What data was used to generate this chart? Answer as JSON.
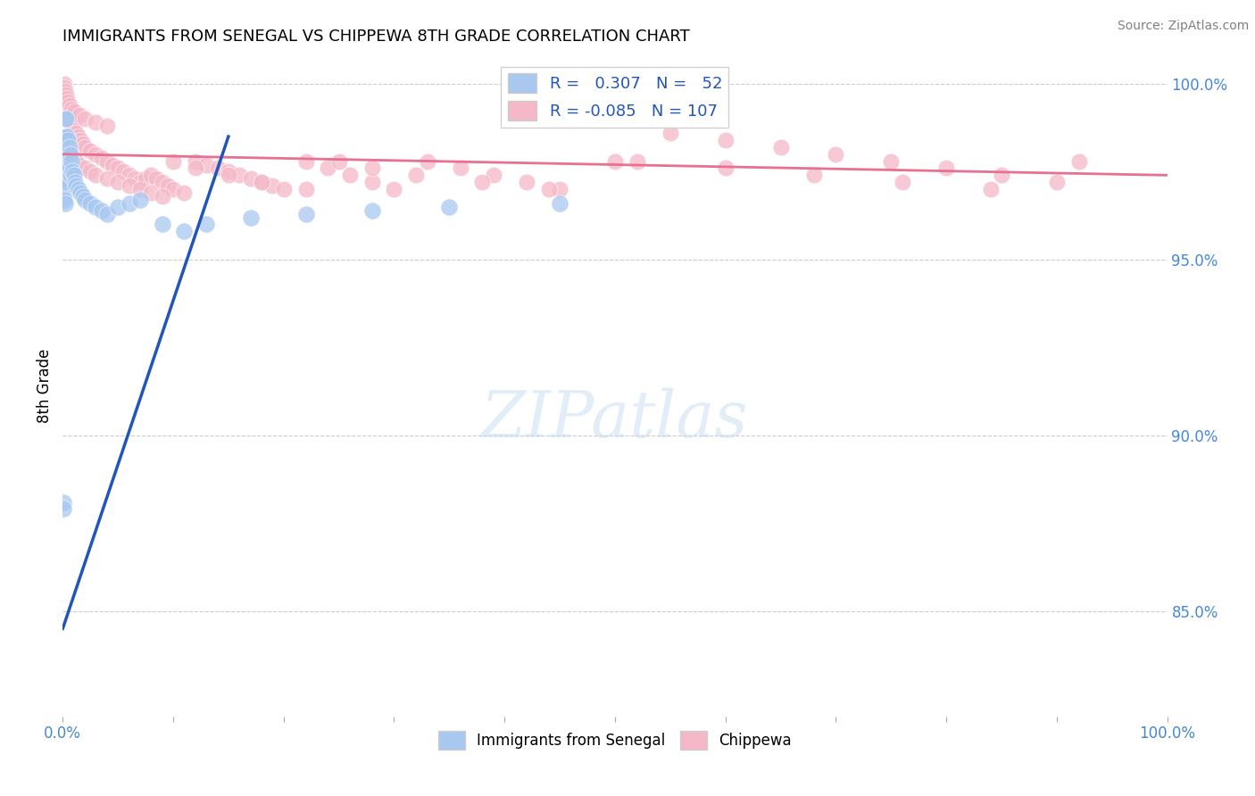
{
  "title": "IMMIGRANTS FROM SENEGAL VS CHIPPEWA 8TH GRADE CORRELATION CHART",
  "source": "Source: ZipAtlas.com",
  "ylabel": "8th Grade",
  "legend_blue_R": "0.307",
  "legend_blue_N": "52",
  "legend_pink_R": "-0.085",
  "legend_pink_N": "107",
  "blue_color": "#A8C8F0",
  "pink_color": "#F5B8C8",
  "blue_line_color": "#2255BB",
  "pink_line_color": "#E87090",
  "background_color": "#FFFFFF",
  "grid_color": "#CCCCCC",
  "xlim": [
    0.0,
    1.0
  ],
  "ylim": [
    0.82,
    1.008
  ],
  "ytick_right_positions": [
    0.85,
    0.9,
    0.95,
    1.0
  ],
  "ytick_right_labels": [
    "85.0%",
    "90.0%",
    "95.0%",
    "100.0%"
  ],
  "blue_scatter_x": [
    0.0008,
    0.0009,
    0.001,
    0.001,
    0.0012,
    0.0013,
    0.0015,
    0.0015,
    0.0016,
    0.0018,
    0.002,
    0.002,
    0.002,
    0.0022,
    0.0025,
    0.003,
    0.003,
    0.003,
    0.003,
    0.004,
    0.004,
    0.004,
    0.005,
    0.005,
    0.006,
    0.006,
    0.007,
    0.007,
    0.008,
    0.009,
    0.01,
    0.011,
    0.012,
    0.014,
    0.016,
    0.018,
    0.02,
    0.025,
    0.03,
    0.035,
    0.04,
    0.05,
    0.06,
    0.07,
    0.09,
    0.11,
    0.13,
    0.17,
    0.22,
    0.28,
    0.35,
    0.45
  ],
  "blue_scatter_y": [
    0.881,
    0.879,
    0.984,
    0.978,
    0.975,
    0.971,
    0.97,
    0.968,
    0.967,
    0.966,
    0.99,
    0.985,
    0.98,
    0.976,
    0.972,
    0.99,
    0.985,
    0.98,
    0.975,
    0.985,
    0.98,
    0.975,
    0.984,
    0.978,
    0.982,
    0.976,
    0.98,
    0.974,
    0.978,
    0.975,
    0.974,
    0.972,
    0.971,
    0.97,
    0.969,
    0.968,
    0.967,
    0.966,
    0.965,
    0.964,
    0.963,
    0.965,
    0.966,
    0.967,
    0.96,
    0.958,
    0.96,
    0.962,
    0.963,
    0.964,
    0.965,
    0.966
  ],
  "pink_scatter_x": [
    0.001,
    0.002,
    0.003,
    0.004,
    0.005,
    0.006,
    0.007,
    0.008,
    0.009,
    0.01,
    0.012,
    0.014,
    0.016,
    0.018,
    0.02,
    0.025,
    0.03,
    0.035,
    0.04,
    0.045,
    0.05,
    0.055,
    0.06,
    0.065,
    0.07,
    0.075,
    0.08,
    0.085,
    0.09,
    0.095,
    0.1,
    0.11,
    0.12,
    0.13,
    0.14,
    0.15,
    0.16,
    0.17,
    0.18,
    0.19,
    0.2,
    0.22,
    0.24,
    0.26,
    0.28,
    0.3,
    0.33,
    0.36,
    0.39,
    0.42,
    0.45,
    0.5,
    0.55,
    0.6,
    0.65,
    0.7,
    0.75,
    0.8,
    0.85,
    0.9,
    0.002,
    0.003,
    0.004,
    0.005,
    0.006,
    0.008,
    0.01,
    0.012,
    0.015,
    0.02,
    0.025,
    0.03,
    0.04,
    0.05,
    0.06,
    0.07,
    0.08,
    0.09,
    0.1,
    0.12,
    0.15,
    0.18,
    0.22,
    0.25,
    0.28,
    0.32,
    0.38,
    0.44,
    0.52,
    0.6,
    0.68,
    0.76,
    0.84,
    0.92,
    0.001,
    0.001,
    0.002,
    0.003,
    0.004,
    0.005,
    0.006,
    0.008,
    0.01,
    0.015,
    0.02,
    0.03,
    0.04
  ],
  "pink_scatter_y": [
    0.998,
    0.996,
    0.994,
    0.993,
    0.992,
    0.991,
    0.99,
    0.989,
    0.988,
    0.987,
    0.986,
    0.985,
    0.984,
    0.983,
    0.982,
    0.981,
    0.98,
    0.979,
    0.978,
    0.977,
    0.976,
    0.975,
    0.974,
    0.973,
    0.972,
    0.973,
    0.974,
    0.973,
    0.972,
    0.971,
    0.97,
    0.969,
    0.978,
    0.977,
    0.976,
    0.975,
    0.974,
    0.973,
    0.972,
    0.971,
    0.97,
    0.978,
    0.976,
    0.974,
    0.972,
    0.97,
    0.978,
    0.976,
    0.974,
    0.972,
    0.97,
    0.978,
    0.986,
    0.984,
    0.982,
    0.98,
    0.978,
    0.976,
    0.974,
    0.972,
    0.985,
    0.984,
    0.983,
    0.982,
    0.981,
    0.98,
    0.979,
    0.978,
    0.977,
    0.976,
    0.975,
    0.974,
    0.973,
    0.972,
    0.971,
    0.97,
    0.969,
    0.968,
    0.978,
    0.976,
    0.974,
    0.972,
    0.97,
    0.978,
    0.976,
    0.974,
    0.972,
    0.97,
    0.978,
    0.976,
    0.974,
    0.972,
    0.97,
    0.978,
    1.0,
    0.999,
    0.998,
    0.997,
    0.996,
    0.995,
    0.994,
    0.993,
    0.992,
    0.991,
    0.99,
    0.989,
    0.988
  ],
  "blue_line_x": [
    0.0,
    0.15
  ],
  "blue_line_y": [
    0.845,
    0.985
  ],
  "pink_line_x": [
    0.0,
    1.0
  ],
  "pink_line_y": [
    0.98,
    0.974
  ]
}
